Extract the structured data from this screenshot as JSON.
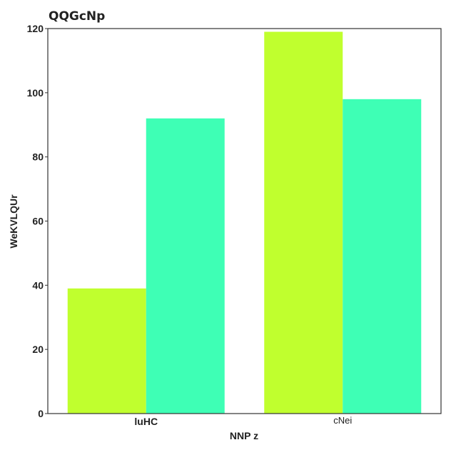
{
  "chart_data": {
    "type": "bar",
    "title": "QQGcNp",
    "xlabel": "NNP z",
    "ylabel": "WeKVLQUr",
    "categories": [
      "luHC",
      "cNei"
    ],
    "series": [
      {
        "values": [
          39,
          119
        ]
      },
      {
        "values": [
          92,
          98
        ]
      }
    ],
    "ylim": [
      0,
      120
    ],
    "yticks": [
      0,
      20,
      40,
      60,
      80,
      100,
      120
    ],
    "grid": false,
    "colors": [
      "#c0ff2e",
      "#3effb5"
    ]
  }
}
